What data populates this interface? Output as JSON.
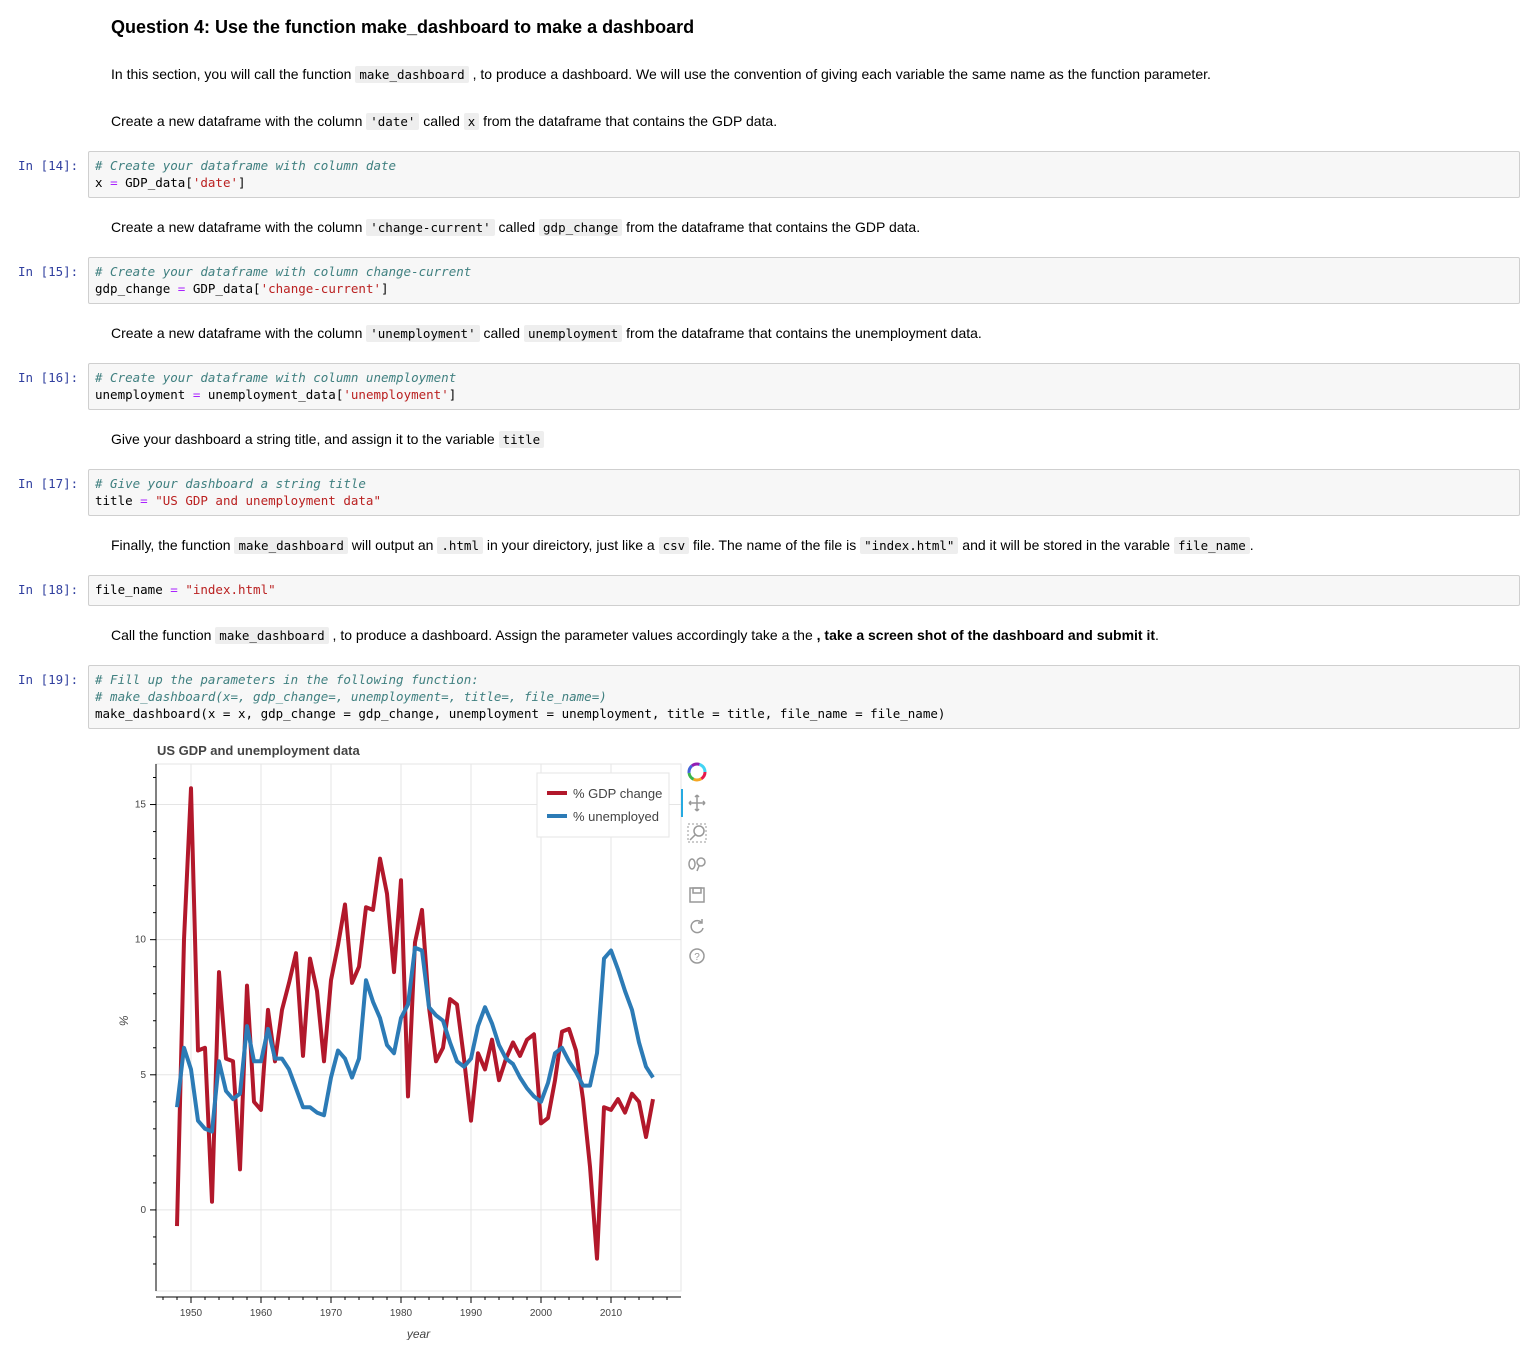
{
  "question_heading": "Question 4: Use the function make_dashboard to make a dashboard",
  "intro": {
    "before": "In this section, you will call the function ",
    "code": "make_dashboard",
    "after": " , to produce a dashboard. We will use the convention of giving each variable the same name as the function parameter."
  },
  "step_date": {
    "t1": "Create a new dataframe with the column ",
    "c1": "'date'",
    "t2": " called ",
    "c2": "x",
    "t3": " from the dataframe that contains the GDP data."
  },
  "step_change": {
    "t1": "Create a new dataframe with the column ",
    "c1": "'change-current'",
    "t2": " called ",
    "c2": "gdp_change",
    "t3": " from the dataframe that contains the GDP data."
  },
  "step_unemp": {
    "t1": "Create a new dataframe with the column ",
    "c1": "'unemployment'",
    "t2": " called ",
    "c2": "unemployment",
    "t3": " from the dataframe that contains the unemployment data."
  },
  "step_title": {
    "t1": "Give your dashboard a string title, and assign it to the variable ",
    "c1": "title"
  },
  "step_file": {
    "t1": "Finally, the function ",
    "c1": "make_dashboard",
    "t2": " will output an ",
    "c2": ".html",
    "t3": " in your direictory, just like a ",
    "c3": "csv",
    "t4": " file. The name of the file is ",
    "c4": "\"index.html\"",
    "t5": " and it will be stored in the varable ",
    "c5": "file_name",
    "t6": "."
  },
  "step_call": {
    "t1": "Call the function ",
    "c1": "make_dashboard",
    "t2": " , to produce a dashboard. Assign the parameter values accordingly take a the ",
    "b1": ", take a screen shot of the dashboard and submit it",
    "t3": "."
  },
  "cells": {
    "c14": {
      "prompt": "In [14]:",
      "comment": "# Create your dataframe with column date",
      "l2a": "x ",
      "l2op": "=",
      "l2b": " GDP_data[",
      "l2s": "'date'",
      "l2c": "]"
    },
    "c15": {
      "prompt": "In [15]:",
      "comment": "# Create your dataframe with column change-current",
      "l2a": "gdp_change ",
      "l2op": "=",
      "l2b": " GDP_data[",
      "l2s": "'change-current'",
      "l2c": "]"
    },
    "c16": {
      "prompt": "In [16]:",
      "comment": "# Create your dataframe with column unemployment",
      "l2a": "unemployment ",
      "l2op": "=",
      "l2b": " unemployment_data[",
      "l2s": "'unemployment'",
      "l2c": "]"
    },
    "c17": {
      "prompt": "In [17]:",
      "comment": "# Give your dashboard a string title",
      "l2a": "title ",
      "l2op": "=",
      "l2b": " ",
      "l2s": "\"US GDP and unemployment data\"",
      "l2c": ""
    },
    "c18": {
      "prompt": "In [18]:",
      "l1a": "file_name ",
      "l1op": "=",
      "l1b": " ",
      "l1s": "\"index.html\""
    },
    "c19": {
      "prompt": "In [19]:",
      "comment1": "# Fill up the parameters in the following function:",
      "comment2": "# make_dashboard(x=, gdp_change=, unemployment=, title=, file_name=)",
      "code": "make_dashboard(x = x, gdp_change = gdp_change, unemployment = unemployment, title = title, file_name = file_name)"
    }
  },
  "toolbar": [
    "bokeh-logo-icon",
    "pan-icon",
    "box-zoom-icon",
    "wheel-zoom-icon",
    "save-icon",
    "reset-icon",
    "help-icon"
  ],
  "colors": {
    "gdp": "#b2182b",
    "unemployment": "#2c7bb6",
    "prompt": "#303f9f"
  },
  "chart_data": {
    "type": "line",
    "title": "US GDP and unemployment data",
    "xlabel": "year",
    "ylabel": "%",
    "xlim": [
      1945,
      2020
    ],
    "ylim": [
      -3,
      16.5
    ],
    "xticks": [
      1950,
      1960,
      1970,
      1980,
      1990,
      2000,
      2010
    ],
    "yticks": [
      0,
      5,
      10,
      15
    ],
    "grid": true,
    "legend_position": "top-right",
    "x": [
      1948,
      1949,
      1950,
      1951,
      1952,
      1953,
      1954,
      1955,
      1956,
      1957,
      1958,
      1959,
      1960,
      1961,
      1962,
      1963,
      1964,
      1965,
      1966,
      1967,
      1968,
      1969,
      1970,
      1971,
      1972,
      1973,
      1974,
      1975,
      1976,
      1977,
      1978,
      1979,
      1980,
      1981,
      1982,
      1983,
      1984,
      1985,
      1986,
      1987,
      1988,
      1989,
      1990,
      1991,
      1992,
      1993,
      1994,
      1995,
      1996,
      1997,
      1998,
      1999,
      2000,
      2001,
      2002,
      2003,
      2004,
      2005,
      2006,
      2007,
      2008,
      2009,
      2010,
      2011,
      2012,
      2013,
      2014,
      2015,
      2016
    ],
    "series": [
      {
        "name": "% GDP change",
        "color": "#b2182b",
        "values": [
          -0.6,
          10.0,
          15.6,
          5.9,
          6.0,
          0.3,
          8.8,
          5.6,
          5.5,
          1.5,
          8.3,
          4.0,
          3.7,
          7.4,
          5.5,
          7.4,
          8.4,
          9.5,
          5.7,
          9.3,
          8.1,
          5.5,
          8.5,
          9.8,
          11.3,
          8.4,
          9.0,
          11.2,
          11.1,
          13.0,
          11.7,
          8.8,
          12.2,
          4.2,
          9.9,
          11.1,
          7.5,
          5.5,
          6.0,
          7.8,
          7.6,
          5.6,
          3.3,
          5.8,
          5.2,
          6.3,
          4.8,
          5.6,
          6.2,
          5.7,
          6.3,
          6.5,
          3.2,
          3.4,
          4.8,
          6.6,
          6.7,
          5.9,
          4.1,
          1.6,
          -1.8,
          3.8,
          3.7,
          4.1,
          3.6,
          4.3,
          4.0,
          2.7,
          4.1
        ]
      },
      {
        "name": "% unemployed",
        "color": "#2c7bb6",
        "values": [
          3.8,
          6.0,
          5.2,
          3.3,
          3.0,
          2.9,
          5.5,
          4.4,
          4.1,
          4.3,
          6.8,
          5.5,
          5.5,
          6.7,
          5.6,
          5.6,
          5.2,
          4.5,
          3.8,
          3.8,
          3.6,
          3.5,
          4.9,
          5.9,
          5.6,
          4.9,
          5.6,
          8.5,
          7.7,
          7.1,
          6.1,
          5.8,
          7.1,
          7.6,
          9.7,
          9.6,
          7.5,
          7.2,
          7.0,
          6.2,
          5.5,
          5.3,
          5.6,
          6.8,
          7.5,
          6.9,
          6.1,
          5.6,
          5.4,
          4.9,
          4.5,
          4.2,
          4.0,
          4.7,
          5.8,
          6.0,
          5.5,
          5.1,
          4.6,
          4.6,
          5.8,
          9.3,
          9.6,
          8.9,
          8.1,
          7.4,
          6.2,
          5.3,
          4.9
        ]
      }
    ]
  }
}
